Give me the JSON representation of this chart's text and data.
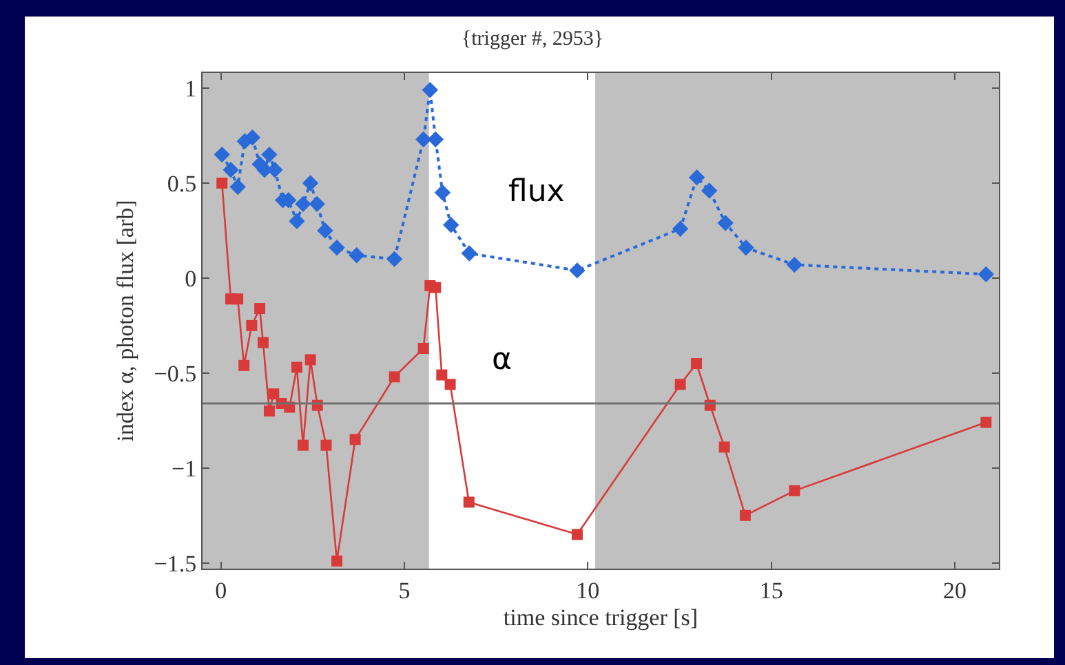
{
  "chart_data": {
    "type": "line",
    "title": "{trigger #, 2953}",
    "xlabel": "time since trigger [s]",
    "ylabel": "index α, photon flux [arb]",
    "series": [
      {
        "name": "flux",
        "color": "#2a6ad8",
        "marker": "diamond",
        "line_style": "dotted",
        "x": [
          0.03,
          0.27,
          0.46,
          0.65,
          0.86,
          1.06,
          1.19,
          1.32,
          1.47,
          1.69,
          1.84,
          2.07,
          2.24,
          2.44,
          2.62,
          2.84,
          3.16,
          3.7,
          4.73,
          5.52,
          5.7,
          5.85,
          6.04,
          6.27,
          6.77,
          9.71,
          12.52,
          12.97,
          13.31,
          13.75,
          14.31,
          15.63,
          20.85
        ],
        "values": [
          0.65,
          0.57,
          0.48,
          0.72,
          0.74,
          0.6,
          0.57,
          0.65,
          0.57,
          0.41,
          0.41,
          0.3,
          0.39,
          0.5,
          0.39,
          0.25,
          0.16,
          0.12,
          0.1,
          0.73,
          0.99,
          0.73,
          0.45,
          0.28,
          0.13,
          0.04,
          0.26,
          0.53,
          0.46,
          0.29,
          0.16,
          0.07,
          0.02
        ]
      },
      {
        "name": "α",
        "color": "#d83a3a",
        "marker": "square",
        "line_style": "solid",
        "x": [
          0.03,
          0.27,
          0.46,
          0.63,
          0.84,
          1.06,
          1.15,
          1.32,
          1.44,
          1.65,
          1.87,
          2.07,
          2.24,
          2.44,
          2.63,
          2.87,
          3.16,
          3.66,
          4.73,
          5.52,
          5.7,
          5.85,
          6.02,
          6.25,
          6.76,
          9.71,
          12.52,
          12.96,
          13.33,
          13.72,
          14.29,
          15.63,
          20.85
        ],
        "values": [
          0.5,
          -0.11,
          -0.11,
          -0.46,
          -0.25,
          -0.16,
          -0.34,
          -0.7,
          -0.61,
          -0.66,
          -0.68,
          -0.47,
          -0.88,
          -0.43,
          -0.67,
          -0.88,
          -1.49,
          -0.85,
          -0.52,
          -0.37,
          -0.04,
          -0.05,
          -0.51,
          -0.56,
          -1.18,
          -1.35,
          -0.56,
          -0.45,
          -0.67,
          -0.89,
          -1.25,
          -1.12,
          -0.76
        ]
      }
    ],
    "xlim": [
      -0.5,
      21.2
    ],
    "ylim": [
      -1.53,
      1.08
    ],
    "xticks": [
      0,
      5,
      10,
      15,
      20
    ],
    "yticks": [
      {
        "value": -1.5,
        "label": "−1.5"
      },
      {
        "value": -1,
        "label": "−1"
      },
      {
        "value": -0.5,
        "label": "−0.5"
      },
      0,
      0.5,
      1
    ],
    "ref_lines": [
      {
        "axis": "y",
        "value": -0.66,
        "color": "#707070"
      }
    ],
    "bands": [
      {
        "axis": "x",
        "from": -0.5,
        "to": 5.67,
        "color": "#c0c0c0"
      },
      {
        "axis": "x",
        "from": 10.2,
        "to": 21.2,
        "color": "#c0c0c0"
      }
    ],
    "grid": false,
    "legend": false
  }
}
